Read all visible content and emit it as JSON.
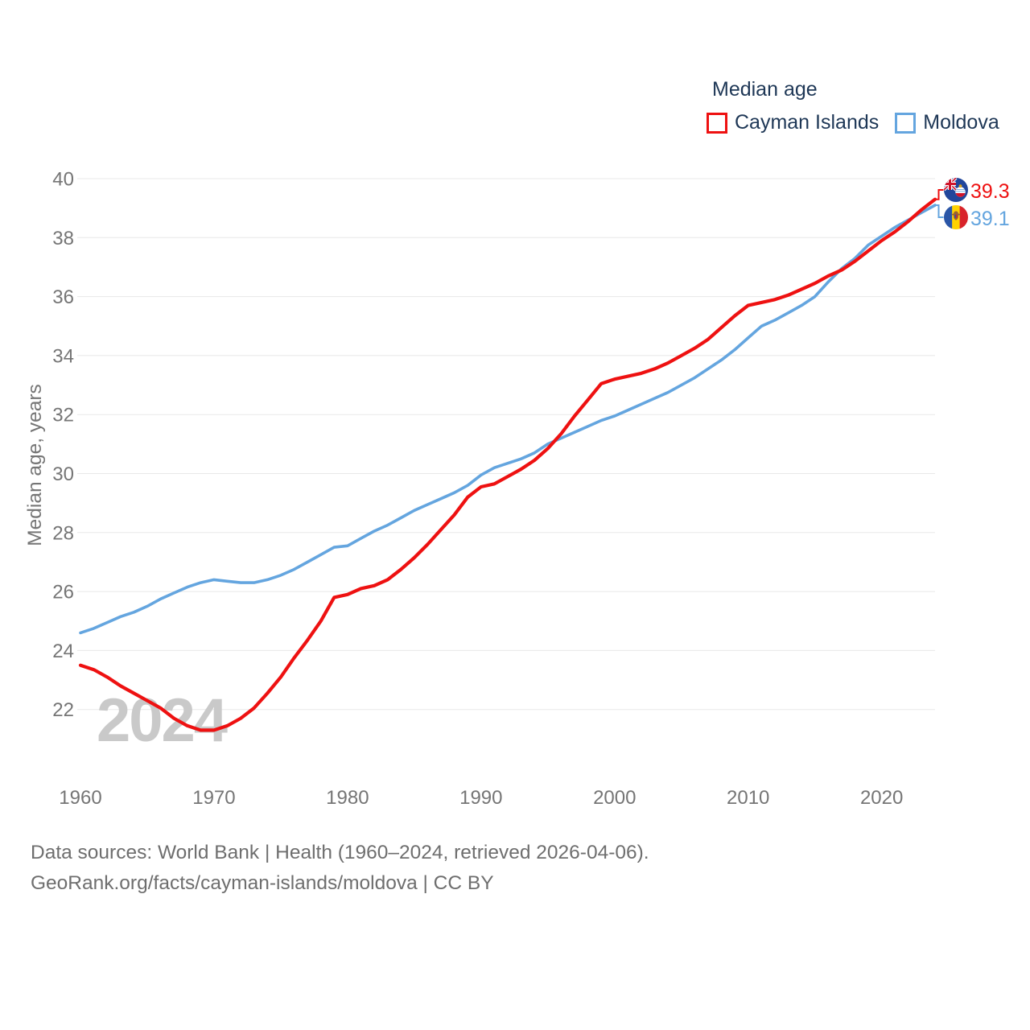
{
  "watermark": "2024",
  "chart_data": {
    "type": "line",
    "title": "Median age",
    "ylabel": "Median age, years",
    "grid": "horizontal",
    "legend_position": "top-right",
    "ylim": [
      20.5,
      40
    ],
    "yticks": [
      22,
      24,
      26,
      28,
      30,
      32,
      34,
      36,
      38,
      40
    ],
    "xticks": [
      1960,
      1970,
      1980,
      1990,
      2000,
      2010,
      2020
    ],
    "x": [
      1960,
      1961,
      1962,
      1963,
      1964,
      1965,
      1966,
      1967,
      1968,
      1969,
      1970,
      1971,
      1972,
      1973,
      1974,
      1975,
      1976,
      1977,
      1978,
      1979,
      1980,
      1981,
      1982,
      1983,
      1984,
      1985,
      1986,
      1987,
      1988,
      1989,
      1990,
      1991,
      1992,
      1993,
      1994,
      1995,
      1996,
      1997,
      1998,
      1999,
      2000,
      2001,
      2002,
      2003,
      2004,
      2005,
      2006,
      2007,
      2008,
      2009,
      2010,
      2011,
      2012,
      2013,
      2014,
      2015,
      2016,
      2017,
      2018,
      2019,
      2020,
      2021,
      2022,
      2023,
      2024
    ],
    "series": [
      {
        "name": "Cayman Islands",
        "color": "#ee1111",
        "end_value": "39.3",
        "flag_icon": "cayman-islands-flag",
        "values": [
          23.5,
          23.35,
          23.1,
          22.8,
          22.55,
          22.3,
          22.05,
          21.7,
          21.45,
          21.3,
          21.3,
          21.45,
          21.7,
          22.05,
          22.55,
          23.1,
          23.75,
          24.35,
          25.0,
          25.8,
          25.9,
          26.1,
          26.2,
          26.4,
          26.75,
          27.15,
          27.6,
          28.1,
          28.6,
          29.2,
          29.55,
          29.65,
          29.9,
          30.15,
          30.45,
          30.85,
          31.35,
          31.95,
          32.5,
          33.05,
          33.2,
          33.3,
          33.4,
          33.55,
          33.75,
          34.0,
          34.25,
          34.55,
          34.95,
          35.35,
          35.7,
          35.8,
          35.9,
          36.05,
          36.25,
          36.45,
          36.7,
          36.9,
          37.2,
          37.55,
          37.9,
          38.2,
          38.55,
          38.95,
          39.3
        ]
      },
      {
        "name": "Moldova",
        "color": "#64a5df",
        "end_value": "39.1",
        "flag_icon": "moldova-flag",
        "values": [
          24.6,
          24.75,
          24.95,
          25.15,
          25.3,
          25.5,
          25.75,
          25.95,
          26.15,
          26.3,
          26.4,
          26.35,
          26.3,
          26.3,
          26.4,
          26.55,
          26.75,
          27.0,
          27.25,
          27.5,
          27.55,
          27.8,
          28.05,
          28.25,
          28.5,
          28.75,
          28.95,
          29.15,
          29.35,
          29.6,
          29.95,
          30.2,
          30.35,
          30.5,
          30.7,
          31.0,
          31.2,
          31.4,
          31.6,
          31.8,
          31.95,
          32.15,
          32.35,
          32.55,
          32.75,
          33.0,
          33.25,
          33.55,
          33.85,
          34.2,
          34.6,
          35.0,
          35.2,
          35.45,
          35.7,
          36.0,
          36.5,
          36.95,
          37.3,
          37.75,
          38.05,
          38.35,
          38.6,
          38.85,
          39.1
        ]
      }
    ]
  },
  "footer": {
    "line1": "Data sources: World Bank | Health (1960–2024, retrieved 2026-04-06).",
    "line2": "GeoRank.org/facts/cayman-islands/moldova | CC BY"
  },
  "colors": {
    "cayman_islands": "#ee1111",
    "moldova": "#64a5df",
    "heading_text": "#1e3756",
    "axis_text": "#757575",
    "footer_text": "#6e6e6e",
    "watermark": "#c9c9c9",
    "gridline": "#e8e8e8"
  }
}
